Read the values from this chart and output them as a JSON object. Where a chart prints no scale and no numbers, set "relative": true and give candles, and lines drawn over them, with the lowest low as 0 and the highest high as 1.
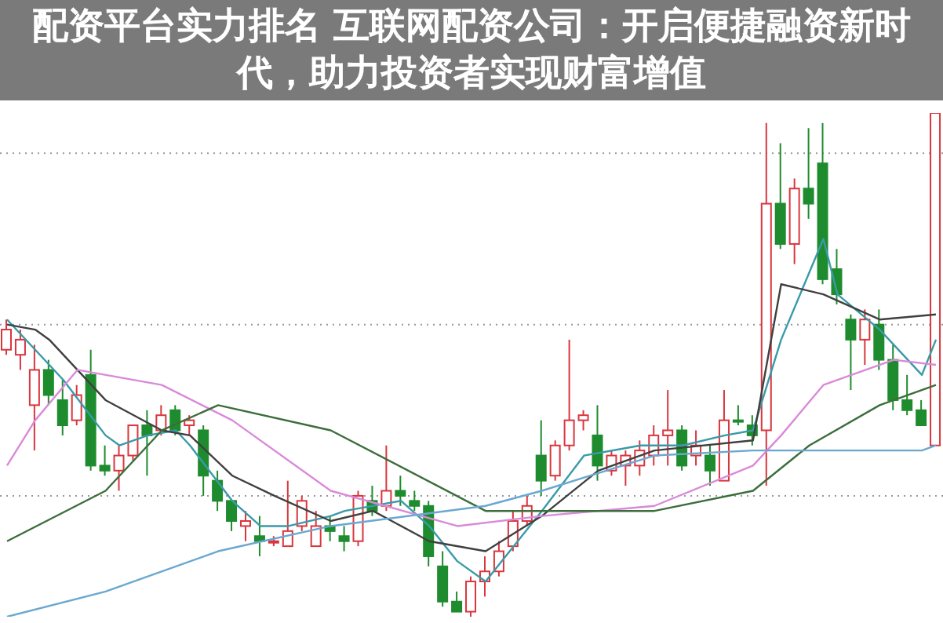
{
  "chart_data": {
    "type": "candlestick",
    "title": "配资平台实力排名 互联网配资公司：开启便捷融资新时代，助力投资者实现财富增值",
    "relative": true,
    "grid": "y",
    "categories": [
      null,
      null,
      null,
      null,
      null,
      null,
      null,
      null,
      null,
      null,
      null,
      null,
      null,
      null,
      null,
      null,
      null,
      null,
      null,
      null,
      null,
      null,
      null,
      null,
      null,
      null,
      null,
      null,
      null,
      null,
      null,
      null,
      null,
      null,
      null,
      null,
      null,
      null,
      null,
      null,
      null,
      null,
      null,
      null,
      null,
      null,
      null,
      null,
      null,
      null,
      null,
      null,
      null,
      null,
      null,
      null,
      null,
      null,
      null,
      null,
      null,
      null,
      null,
      null,
      null,
      null,
      null
    ],
    "ohlc": [
      [
        0.53,
        0.59,
        0.52,
        0.57
      ],
      [
        0.52,
        0.57,
        0.49,
        0.55
      ],
      [
        0.42,
        0.54,
        0.33,
        0.49
      ],
      [
        0.49,
        0.51,
        0.42,
        0.44
      ],
      [
        0.43,
        0.47,
        0.36,
        0.38
      ],
      [
        0.39,
        0.46,
        0.38,
        0.44
      ],
      [
        0.48,
        0.53,
        0.29,
        0.3
      ],
      [
        0.3,
        0.34,
        0.28,
        0.29
      ],
      [
        0.29,
        0.34,
        0.25,
        0.32
      ],
      [
        0.32,
        0.38,
        0.31,
        0.38
      ],
      [
        0.38,
        0.41,
        0.28,
        0.36
      ],
      [
        0.37,
        0.42,
        0.36,
        0.4
      ],
      [
        0.41,
        0.42,
        0.36,
        0.37
      ],
      [
        0.38,
        0.4,
        0.36,
        0.39
      ],
      [
        0.37,
        0.38,
        0.24,
        0.28
      ],
      [
        0.27,
        0.29,
        0.21,
        0.23
      ],
      [
        0.23,
        0.23,
        0.17,
        0.19
      ],
      [
        0.18,
        0.21,
        0.15,
        0.19
      ],
      [
        0.16,
        0.2,
        0.12,
        0.15
      ],
      [
        0.15,
        0.16,
        0.14,
        0.15
      ],
      [
        0.14,
        0.27,
        0.14,
        0.17
      ],
      [
        0.18,
        0.24,
        0.17,
        0.23
      ],
      [
        0.14,
        0.21,
        0.14,
        0.18
      ],
      [
        0.18,
        0.2,
        0.15,
        0.17
      ],
      [
        0.16,
        0.18,
        0.13,
        0.15
      ],
      [
        0.15,
        0.25,
        0.14,
        0.24
      ],
      [
        0.23,
        0.26,
        0.2,
        0.21
      ],
      [
        0.22,
        0.34,
        0.21,
        0.25
      ],
      [
        0.25,
        0.28,
        0.22,
        0.24
      ],
      [
        0.23,
        0.25,
        0.21,
        0.22
      ],
      [
        0.22,
        0.23,
        0.1,
        0.12
      ],
      [
        0.1,
        0.13,
        0.02,
        0.03
      ],
      [
        0.03,
        0.05,
        0.01,
        0.01
      ],
      [
        0.01,
        0.08,
        0,
        0.07
      ],
      [
        0.07,
        0.12,
        0.04,
        0.09
      ],
      [
        0.09,
        0.15,
        0.08,
        0.13
      ],
      [
        0.14,
        0.21,
        0.13,
        0.19
      ],
      [
        0.19,
        0.24,
        0.18,
        0.22
      ],
      [
        0.32,
        0.39,
        0.24,
        0.27
      ],
      [
        0.28,
        0.35,
        0.27,
        0.34
      ],
      [
        0.34,
        0.55,
        0.33,
        0.39
      ],
      [
        0.39,
        0.41,
        0.37,
        0.4
      ],
      [
        0.36,
        0.42,
        0.27,
        0.3
      ],
      [
        0.29,
        0.33,
        0.28,
        0.32
      ],
      [
        0.3,
        0.33,
        0.26,
        0.32
      ],
      [
        0.3,
        0.35,
        0.28,
        0.33
      ],
      [
        0.32,
        0.38,
        0.3,
        0.36
      ],
      [
        0.36,
        0.45,
        0.3,
        0.37
      ],
      [
        0.37,
        0.38,
        0.29,
        0.3
      ],
      [
        0.32,
        0.37,
        0.3,
        0.34
      ],
      [
        0.32,
        0.34,
        0.26,
        0.29
      ],
      [
        0.27,
        0.45,
        0.27,
        0.39
      ],
      [
        0.39,
        0.42,
        0.38,
        0.39
      ],
      [
        0.38,
        0.4,
        0.34,
        0.36
      ],
      [
        0.37,
        0.98,
        0.26,
        0.82
      ],
      [
        0.82,
        0.94,
        0.73,
        0.74
      ],
      [
        0.74,
        0.87,
        0.7,
        0.85
      ],
      [
        0.85,
        0.97,
        0.79,
        0.82
      ],
      [
        0.9,
        0.98,
        0.66,
        0.67
      ],
      [
        0.69,
        0.73,
        0.62,
        0.64
      ],
      [
        0.59,
        0.6,
        0.45,
        0.55
      ],
      [
        0.55,
        0.61,
        0.5,
        0.59
      ],
      [
        0.58,
        0.61,
        0.49,
        0.51
      ],
      [
        0.51,
        0.54,
        0.41,
        0.43
      ],
      [
        0.43,
        0.48,
        0.4,
        0.41
      ],
      [
        0.41,
        0.43,
        0.38,
        0.38
      ],
      [
        0.34,
        1.0,
        0.34,
        1.0
      ]
    ],
    "colors": [
      "#d9363e",
      "#d9363e",
      "#d9363e",
      "#1e8c2e",
      "#1e8c2e",
      "#d9363e",
      "#1e8c2e",
      "#1e8c2e",
      "#d9363e",
      "#d9363e",
      "#1e8c2e",
      "#d9363e",
      "#1e8c2e",
      "#d9363e",
      "#1e8c2e",
      "#1e8c2e",
      "#1e8c2e",
      "#d9363e",
      "#1e8c2e",
      "#d9363e",
      "#d9363e",
      "#d9363e",
      "#d9363e",
      "#1e8c2e",
      "#1e8c2e",
      "#d9363e",
      "#1e8c2e",
      "#d9363e",
      "#1e8c2e",
      "#1e8c2e",
      "#1e8c2e",
      "#1e8c2e",
      "#1e8c2e",
      "#d9363e",
      "#d9363e",
      "#d9363e",
      "#d9363e",
      "#d9363e",
      "#1e8c2e",
      "#d9363e",
      "#d9363e",
      "#d9363e",
      "#1e8c2e",
      "#d9363e",
      "#d9363e",
      "#d9363e",
      "#d9363e",
      "#d9363e",
      "#1e8c2e",
      "#d9363e",
      "#1e8c2e",
      "#d9363e",
      "#1e8c2e",
      "#1e8c2e",
      "#d9363e",
      "#1e8c2e",
      "#d9363e",
      "#1e8c2e",
      "#1e8c2e",
      "#1e8c2e",
      "#1e8c2e",
      "#d9363e",
      "#1e8c2e",
      "#1e8c2e",
      "#1e8c2e",
      "#1e8c2e",
      "#d9363e"
    ],
    "series": [
      {
        "type": "line",
        "color": "#3a9aa8",
        "values": [
          0.59,
          null,
          null,
          null,
          0.47,
          null,
          null,
          0.36,
          0.34,
          null,
          0.36,
          null,
          0.37,
          0.34,
          null,
          null,
          0.23,
          null,
          0.18,
          null,
          0.18,
          null,
          null,
          0.2,
          0.21,
          null,
          null,
          null,
          0.23,
          null,
          0.18,
          null,
          0.11,
          null,
          0.07,
          null,
          null,
          null,
          0.21,
          null,
          null,
          0.32,
          null,
          null,
          null,
          0.34,
          null,
          null,
          0.34,
          null,
          null,
          0.36,
          null,
          0.37,
          null,
          0.55,
          null,
          null,
          0.75,
          0.64,
          null,
          null,
          0.57,
          null,
          null,
          0.48,
          0.55
        ]
      },
      {
        "type": "line",
        "color": "#404040",
        "values": [
          0.58,
          null,
          0.57,
          0.55,
          null,
          null,
          null,
          0.43,
          null,
          null,
          null,
          0.37,
          null,
          0.36,
          null,
          null,
          0.28,
          null,
          null,
          0.24,
          null,
          null,
          null,
          0.19,
          null,
          null,
          0.21,
          null,
          null,
          null,
          0.15,
          null,
          null,
          null,
          0.13,
          null,
          null,
          null,
          0.2,
          null,
          null,
          null,
          0.29,
          null,
          null,
          null,
          0.33,
          null,
          null,
          null,
          null,
          null,
          null,
          0.35,
          null,
          0.66,
          null,
          null,
          0.64,
          null,
          null,
          null,
          0.59,
          null,
          null,
          null,
          0.6
        ]
      },
      {
        "type": "line",
        "color": "#d98ad9",
        "values": [
          0.3,
          null,
          0.39,
          null,
          null,
          0.49,
          null,
          null,
          null,
          null,
          null,
          0.46,
          null,
          null,
          null,
          null,
          0.39,
          null,
          null,
          null,
          null,
          null,
          null,
          0.25,
          null,
          null,
          null,
          null,
          null,
          null,
          null,
          null,
          0.18,
          null,
          null,
          null,
          null,
          null,
          0.2,
          null,
          null,
          null,
          null,
          null,
          null,
          null,
          0.22,
          null,
          null,
          null,
          null,
          null,
          null,
          0.3,
          null,
          0.36,
          null,
          null,
          0.46,
          null,
          null,
          null,
          null,
          0.51,
          null,
          null,
          0.5
        ]
      },
      {
        "type": "line",
        "color": "#3c6e3c",
        "values": [
          0.15,
          null,
          null,
          null,
          null,
          null,
          null,
          0.25,
          null,
          null,
          null,
          0.37,
          null,
          null,
          null,
          0.42,
          null,
          null,
          null,
          null,
          null,
          null,
          null,
          0.37,
          null,
          null,
          null,
          null,
          null,
          null,
          null,
          null,
          null,
          null,
          0.21,
          null,
          null,
          null,
          0.21,
          null,
          null,
          null,
          null,
          null,
          null,
          null,
          0.21,
          null,
          null,
          null,
          null,
          null,
          null,
          0.25,
          null,
          null,
          null,
          0.34,
          null,
          null,
          null,
          null,
          0.42,
          null,
          null,
          null,
          0.46
        ]
      },
      {
        "type": "line",
        "color": "#6aa8d0",
        "values": [
          0,
          null,
          null,
          null,
          null,
          null,
          null,
          0.05,
          null,
          null,
          null,
          null,
          null,
          null,
          null,
          0.13,
          null,
          null,
          null,
          null,
          null,
          null,
          null,
          0.18,
          null,
          null,
          null,
          null,
          null,
          null,
          null,
          null,
          null,
          null,
          0.22,
          null,
          null,
          null,
          0.25,
          null,
          null,
          null,
          null,
          null,
          null,
          null,
          0.32,
          null,
          null,
          null,
          null,
          null,
          null,
          0.33,
          null,
          null,
          null,
          null,
          null,
          null,
          null,
          null,
          null,
          null,
          null,
          0.33,
          0.34
        ]
      }
    ]
  }
}
